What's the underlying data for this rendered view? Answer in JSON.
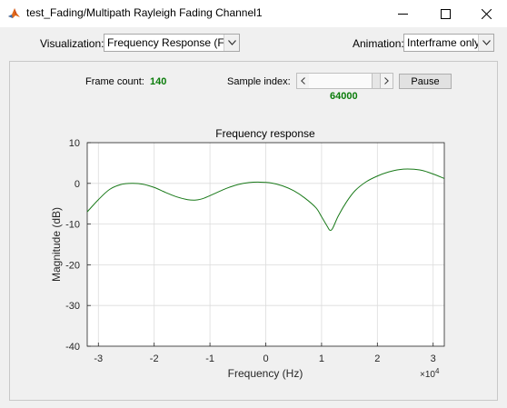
{
  "window": {
    "title": "test_Fading/Multipath Rayleigh Fading Channel1"
  },
  "toolbar": {
    "visualization_label": "Visualization:",
    "visualization_value": "Frequency Response (F...",
    "animation_label": "Animation:",
    "animation_value": "Interframe only"
  },
  "controls": {
    "frame_count_label": "Frame count:",
    "frame_count_value": "140",
    "sample_index_label": "Sample index:",
    "sample_index_value": "64000",
    "slider_position_fraction": 0.0,
    "pause_label": "Pause"
  },
  "colors": {
    "line": "#1a7a1a",
    "accent_value": "#0a7c0a"
  },
  "chart_data": {
    "type": "line",
    "title": "Frequency response",
    "xlabel": "Frequency (Hz)",
    "ylabel": "Magnitude (dB)",
    "x_multiplier_label": "×10",
    "x_multiplier_exp": "4",
    "xlim": [
      -3.2,
      3.2
    ],
    "ylim": [
      -40,
      10
    ],
    "xticks": [
      -3,
      -2,
      -1,
      0,
      1,
      2,
      3
    ],
    "xtick_labels": [
      "-3",
      "-2",
      "-1",
      "0",
      "1",
      "2",
      "3"
    ],
    "yticks": [
      10,
      0,
      -10,
      -20,
      -30,
      -40
    ],
    "ytick_labels": [
      "10",
      "0",
      "-10",
      "-20",
      "-30",
      "-40"
    ],
    "grid": true,
    "series": [
      {
        "x": [
          -3.2,
          -3.0,
          -2.8,
          -2.6,
          -2.4,
          -2.2,
          -2.0,
          -1.8,
          -1.6,
          -1.4,
          -1.25,
          -1.1,
          -0.9,
          -0.7,
          -0.5,
          -0.3,
          -0.1,
          0.1,
          0.3,
          0.5,
          0.7,
          0.9,
          1.0,
          1.1,
          1.15,
          1.2,
          1.3,
          1.45,
          1.6,
          1.8,
          2.0,
          2.2,
          2.4,
          2.6,
          2.8,
          3.0,
          3.2
        ],
        "y": [
          -7,
          -4,
          -1.5,
          -0.3,
          0,
          -0.2,
          -1,
          -2.2,
          -3.3,
          -4.0,
          -4.1,
          -3.6,
          -2.4,
          -1.2,
          -0.3,
          0.2,
          0.3,
          0.1,
          -0.6,
          -1.8,
          -3.6,
          -6.0,
          -8.2,
          -10.5,
          -11.5,
          -11.0,
          -8.0,
          -4.5,
          -1.8,
          0.4,
          1.8,
          2.8,
          3.4,
          3.5,
          3.2,
          2.3,
          1.2
        ]
      }
    ]
  }
}
